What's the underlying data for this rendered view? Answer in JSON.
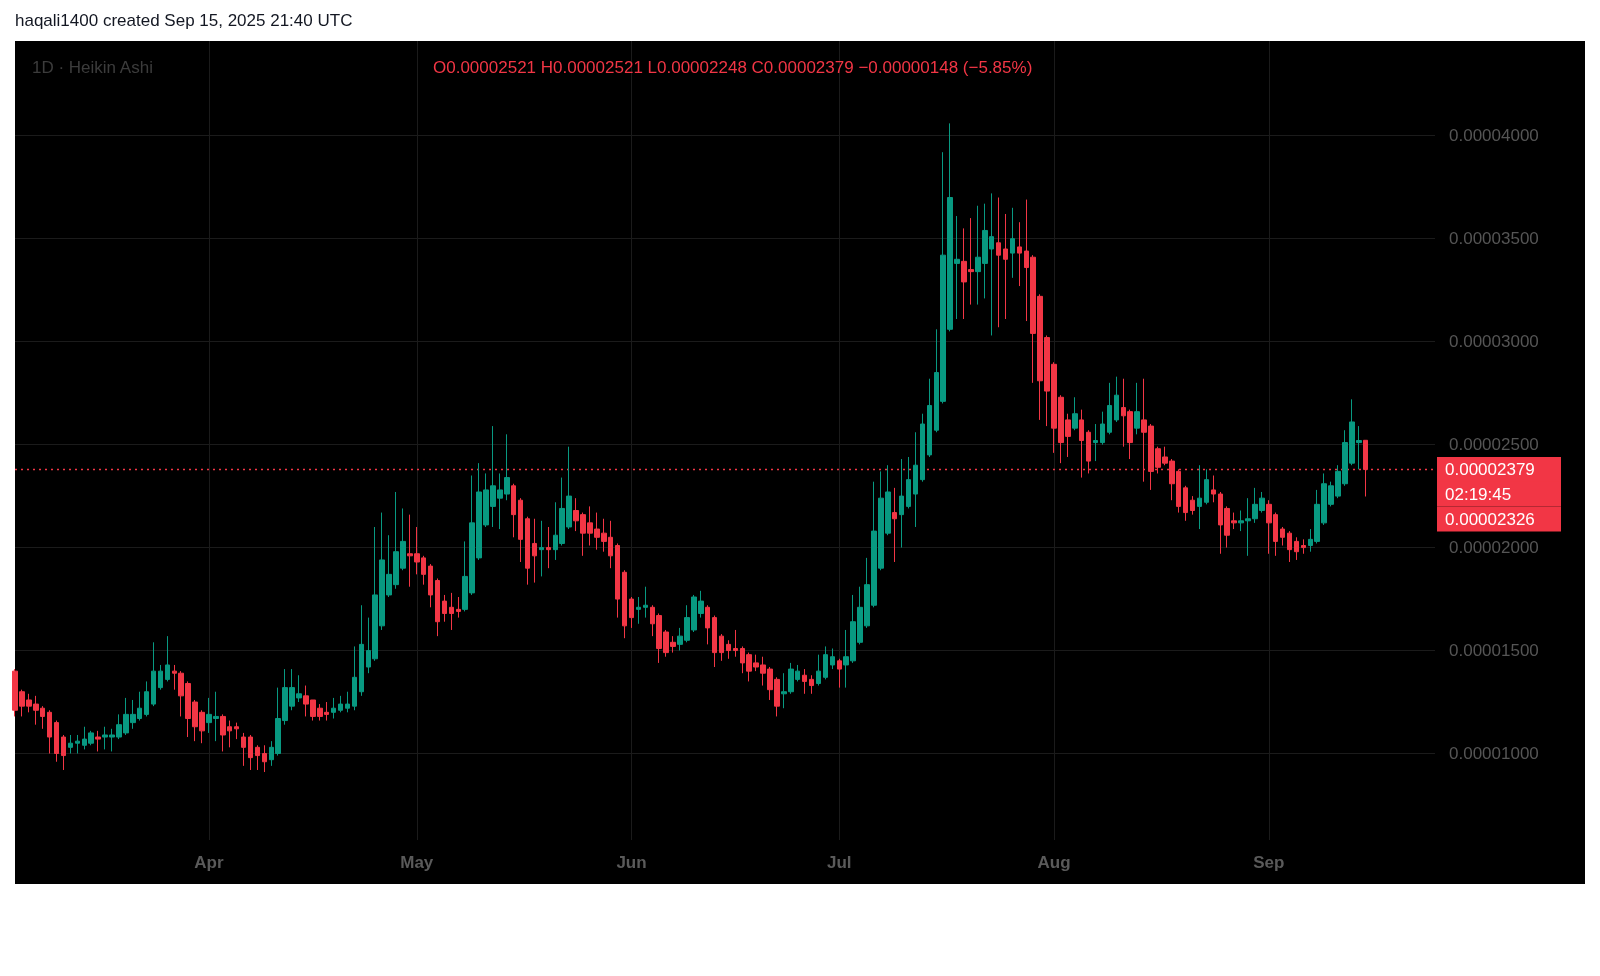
{
  "chart_data": {
    "type": "candlestick",
    "title": "1D · Heikin Ashi",
    "subtitle": "O0.00002521 H0.00002521 L0.00002248 C0.00002379 −0.00000148 (−5.85%)",
    "annotations": [
      "haqali1400 created Sep 15, 2025 21:40 UTC",
      "02:19:45",
      "0.00002326"
    ],
    "colors": [
      "#f23645",
      "#f23645",
      "#f23645",
      "#f23645",
      "#f23645",
      "#f23645",
      "#f23645",
      "#f23645",
      "#089981",
      "#089981",
      "#089981",
      "#089981",
      "#f23645",
      "#089981",
      "#089981",
      "#089981",
      "#089981",
      "#089981",
      "#089981",
      "#089981",
      "#089981",
      "#089981",
      "#089981",
      "#f23645",
      "#f23645",
      "#f23645",
      "#f23645",
      "#f23645",
      "#089981",
      "#089981",
      "#f23645",
      "#f23645",
      "#f23645",
      "#f23645",
      "#f23645",
      "#f23645",
      "#f23645",
      "#089981",
      "#089981",
      "#089981",
      "#089981",
      "#089981",
      "#f23645",
      "#f23645",
      "#f23645",
      "#f23645",
      "#089981",
      "#089981",
      "#089981",
      "#089981",
      "#089981",
      "#089981",
      "#089981",
      "#089981",
      "#089981",
      "#089981",
      "#089981",
      "#f23645",
      "#f23645",
      "#f23645",
      "#f23645",
      "#f23645",
      "#f23645",
      "#f23645",
      "#f23645",
      "#089981",
      "#089981",
      "#089981",
      "#089981",
      "#089981",
      "#089981",
      "#089981",
      "#f23645",
      "#f23645",
      "#f23645",
      "#f23645",
      "#089981",
      "#f23645",
      "#089981",
      "#089981",
      "#089981",
      "#f23645",
      "#f23645",
      "#f23645",
      "#f23645",
      "#f23645",
      "#f23645",
      "#f23645",
      "#f23645",
      "#f23645",
      "#089981",
      "#089981",
      "#f23645",
      "#f23645",
      "#f23645",
      "#f23645",
      "#089981",
      "#089981",
      "#089981",
      "#089981",
      "#f23645",
      "#f23645",
      "#f23645",
      "#f23645",
      "#f23645",
      "#f23645",
      "#f23645",
      "#f23645",
      "#f23645",
      "#f23645",
      "#f23645",
      "#089981",
      "#089981",
      "#089981",
      "#f23645",
      "#f23645",
      "#089981",
      "#089981",
      "#089981",
      "#f23645",
      "#089981",
      "#089981",
      "#089981",
      "#089981",
      "#089981",
      "#089981",
      "#089981",
      "#f23645",
      "#089981",
      "#089981",
      "#089981",
      "#089981",
      "#089981",
      "#089981",
      "#089981",
      "#089981",
      "#089981",
      "#f23645",
      "#f23645",
      "#089981",
      "#089981",
      "#089981",
      "#f23645",
      "#f23645",
      "#089981",
      "#f23645",
      "#f23645",
      "#f23645",
      "#f23645",
      "#f23645",
      "#f23645",
      "#f23645",
      "#f23645",
      "#089981",
      "#f23645",
      "#f23645",
      "#089981",
      "#089981",
      "#089981",
      "#089981",
      "#f23645",
      "#f23645",
      "#089981",
      "#f23645",
      "#f23645",
      "#f23645",
      "#f23645",
      "#f23645",
      "#f23645",
      "#f23645",
      "#f23645",
      "#089981",
      "#089981",
      "#f23645",
      "#f23645",
      "#f23645",
      "#f23645",
      "#089981",
      "#089981",
      "#089981",
      "#089981",
      "#f23645",
      "#f23645",
      "#f23645",
      "#f23645",
      "#f23645",
      "#f23645",
      "#089981",
      "#089981",
      "#089981",
      "#089981",
      "#089981",
      "#089981",
      "#089981",
      "#089981",
      "#f23645"
    ],
    "grid": true,
    "xlim": [
      "2025-03-04",
      "2025-09-25"
    ],
    "xticks": [
      {
        "value": "2025-04-01",
        "label": "Apr"
      },
      {
        "value": "2025-05-01",
        "label": "May"
      },
      {
        "value": "2025-06-01",
        "label": "Jun"
      },
      {
        "value": "2025-07-01",
        "label": "Jul"
      },
      {
        "value": "2025-08-01",
        "label": "Aug"
      },
      {
        "value": "2025-09-01",
        "label": "Sep"
      }
    ],
    "ylim": [
      5.8e-06,
      4.46e-05
    ],
    "yticks": [
      {
        "value": 1e-05,
        "label": "0.00001000"
      },
      {
        "value": 1.5e-05,
        "label": "0.00001500"
      },
      {
        "value": 2e-05,
        "label": "0.00002000"
      },
      {
        "value": 2.5e-05,
        "label": "0.00002500"
      },
      {
        "value": 3e-05,
        "label": "0.00003000"
      },
      {
        "value": 3.5e-05,
        "label": "0.00003500"
      },
      {
        "value": 4e-05,
        "label": "0.00004000"
      }
    ],
    "ref_lines": [
      {
        "axis": "y",
        "value": 2.379e-05,
        "label": "0.00002379",
        "color": "#f23645",
        "line_style": "dotted"
      }
    ],
    "x": [
      "2025-03-04",
      "2025-03-05",
      "2025-03-06",
      "2025-03-07",
      "2025-03-08",
      "2025-03-09",
      "2025-03-10",
      "2025-03-11",
      "2025-03-12",
      "2025-03-13",
      "2025-03-14",
      "2025-03-15",
      "2025-03-16",
      "2025-03-17",
      "2025-03-18",
      "2025-03-19",
      "2025-03-20",
      "2025-03-21",
      "2025-03-22",
      "2025-03-23",
      "2025-03-24",
      "2025-03-25",
      "2025-03-26",
      "2025-03-27",
      "2025-03-28",
      "2025-03-29",
      "2025-03-30",
      "2025-03-31",
      "2025-04-01",
      "2025-04-02",
      "2025-04-03",
      "2025-04-04",
      "2025-04-05",
      "2025-04-06",
      "2025-04-07",
      "2025-04-08",
      "2025-04-09",
      "2025-04-10",
      "2025-04-11",
      "2025-04-12",
      "2025-04-13",
      "2025-04-14",
      "2025-04-15",
      "2025-04-16",
      "2025-04-17",
      "2025-04-18",
      "2025-04-19",
      "2025-04-20",
      "2025-04-21",
      "2025-04-22",
      "2025-04-23",
      "2025-04-24",
      "2025-04-25",
      "2025-04-26",
      "2025-04-27",
      "2025-04-28",
      "2025-04-29",
      "2025-04-30",
      "2025-05-01",
      "2025-05-02",
      "2025-05-03",
      "2025-05-04",
      "2025-05-05",
      "2025-05-06",
      "2025-05-07",
      "2025-05-08",
      "2025-05-09",
      "2025-05-10",
      "2025-05-11",
      "2025-05-12",
      "2025-05-13",
      "2025-05-14",
      "2025-05-15",
      "2025-05-16",
      "2025-05-17",
      "2025-05-18",
      "2025-05-19",
      "2025-05-20",
      "2025-05-21",
      "2025-05-22",
      "2025-05-23",
      "2025-05-24",
      "2025-05-25",
      "2025-05-26",
      "2025-05-27",
      "2025-05-28",
      "2025-05-29",
      "2025-05-30",
      "2025-05-31",
      "2025-06-01",
      "2025-06-02",
      "2025-06-03",
      "2025-06-04",
      "2025-06-05",
      "2025-06-06",
      "2025-06-07",
      "2025-06-08",
      "2025-06-09",
      "2025-06-10",
      "2025-06-11",
      "2025-06-12",
      "2025-06-13",
      "2025-06-14",
      "2025-06-15",
      "2025-06-16",
      "2025-06-17",
      "2025-06-18",
      "2025-06-19",
      "2025-06-20",
      "2025-06-21",
      "2025-06-22",
      "2025-06-23",
      "2025-06-24",
      "2025-06-25",
      "2025-06-26",
      "2025-06-27",
      "2025-06-28",
      "2025-06-29",
      "2025-06-30",
      "2025-07-01",
      "2025-07-02",
      "2025-07-03",
      "2025-07-04",
      "2025-07-05",
      "2025-07-06",
      "2025-07-07",
      "2025-07-08",
      "2025-07-09",
      "2025-07-10",
      "2025-07-11",
      "2025-07-12",
      "2025-07-13",
      "2025-07-14",
      "2025-07-15",
      "2025-07-16",
      "2025-07-17",
      "2025-07-18",
      "2025-07-19",
      "2025-07-20",
      "2025-07-21",
      "2025-07-22",
      "2025-07-23",
      "2025-07-24",
      "2025-07-25",
      "2025-07-26",
      "2025-07-27",
      "2025-07-28",
      "2025-07-29",
      "2025-07-30",
      "2025-07-31",
      "2025-08-01",
      "2025-08-02",
      "2025-08-03",
      "2025-08-04",
      "2025-08-05",
      "2025-08-06",
      "2025-08-07",
      "2025-08-08",
      "2025-08-09",
      "2025-08-10",
      "2025-08-11",
      "2025-08-12",
      "2025-08-13",
      "2025-08-14",
      "2025-08-15",
      "2025-08-16",
      "2025-08-17",
      "2025-08-18",
      "2025-08-19",
      "2025-08-20",
      "2025-08-21",
      "2025-08-22",
      "2025-08-23",
      "2025-08-24",
      "2025-08-25",
      "2025-08-26",
      "2025-08-27",
      "2025-08-28",
      "2025-08-29",
      "2025-08-30",
      "2025-08-31",
      "2025-09-01",
      "2025-09-02",
      "2025-09-03",
      "2025-09-04",
      "2025-09-05",
      "2025-09-06",
      "2025-09-07",
      "2025-09-08",
      "2025-09-09",
      "2025-09-10",
      "2025-09-11",
      "2025-09-12",
      "2025-09-13",
      "2025-09-14",
      "2025-09-15"
    ],
    "ohlc": [
      [
        1.4e-05,
        1.41e-05,
        1.18e-05,
        1.21e-05
      ],
      [
        1.3e-05,
        1.31e-05,
        1.18e-05,
        1.23e-05
      ],
      [
        1.26e-05,
        1.29e-05,
        1.2e-05,
        1.23e-05
      ],
      [
        1.24e-05,
        1.28e-05,
        1.14e-05,
        1.21e-05
      ],
      [
        1.22e-05,
        1.23e-05,
        1.12e-05,
        1.18e-05
      ],
      [
        1.2e-05,
        1.21e-05,
        1e-05,
        1.08e-05
      ],
      [
        1.15e-05,
        1.16e-05,
        9.6e-06,
        1e-05
      ],
      [
        1.08e-05,
        1.09e-05,
        9.2e-06,
        9.9e-06
      ],
      [
        1.03e-05,
        1.09e-05,
        1e-05,
        1.05e-05
      ],
      [
        1.05e-05,
        1.09e-05,
        1e-05,
        1.06e-05
      ],
      [
        1.04e-05,
        1.13e-05,
        1.02e-05,
        1.07e-05
      ],
      [
        1.05e-05,
        1.11e-05,
        1.04e-05,
        1.1e-05
      ],
      [
        1.08e-05,
        1.11e-05,
        1.01e-05,
        1.07e-05
      ],
      [
        1.08e-05,
        1.13e-05,
        1.02e-05,
        1.09e-05
      ],
      [
        1.08e-05,
        1.12e-05,
        1.01e-05,
        1.09e-05
      ],
      [
        1.08e-05,
        1.19e-05,
        1.07e-05,
        1.14e-05
      ],
      [
        1.1e-05,
        1.27e-05,
        1.09e-05,
        1.19e-05
      ],
      [
        1.15e-05,
        1.26e-05,
        1.12e-05,
        1.19e-05
      ],
      [
        1.17e-05,
        1.3e-05,
        1.16e-05,
        1.22e-05
      ],
      [
        1.19e-05,
        1.35e-05,
        1.18e-05,
        1.3e-05
      ],
      [
        1.24e-05,
        1.54e-05,
        1.23e-05,
        1.4e-05
      ],
      [
        1.32e-05,
        1.43e-05,
        1.31e-05,
        1.4e-05
      ],
      [
        1.36e-05,
        1.57e-05,
        1.35e-05,
        1.43e-05
      ],
      [
        1.4e-05,
        1.43e-05,
        1.31e-05,
        1.39e-05
      ],
      [
        1.39e-05,
        1.4e-05,
        1.18e-05,
        1.28e-05
      ],
      [
        1.34e-05,
        1.35e-05,
        1.08e-05,
        1.17e-05
      ],
      [
        1.25e-05,
        1.26e-05,
        1.06e-05,
        1.13e-05
      ],
      [
        1.2e-05,
        1.21e-05,
        1.05e-05,
        1.11e-05
      ],
      [
        1.15e-05,
        1.27e-05,
        1.1e-05,
        1.19e-05
      ],
      [
        1.17e-05,
        1.3e-05,
        1.06e-05,
        1.18e-05
      ],
      [
        1.18e-05,
        1.19e-05,
        1.01e-05,
        1.09e-05
      ],
      [
        1.13e-05,
        1.16e-05,
        1.03e-05,
        1.11e-05
      ],
      [
        1.13e-05,
        1.15e-05,
        1.07e-05,
        1.12e-05
      ],
      [
        1.08e-05,
        1.1e-05,
        9.4e-06,
        1.03e-05
      ],
      [
        1.08e-05,
        1.09e-05,
        9.2e-06,
        9.8e-06
      ],
      [
        1.03e-05,
        1.04e-05,
        9.2e-06,
        9.9e-06
      ],
      [
        1e-05,
        1.04e-05,
        9.1e-06,
        9.6e-06
      ],
      [
        9.7e-06,
        1.06e-05,
        9.4e-06,
        1.03e-05
      ],
      [
        1e-05,
        1.32e-05,
        9.9e-06,
        1.17e-05
      ],
      [
        1.16e-05,
        1.41e-05,
        1.14e-05,
        1.32e-05
      ],
      [
        1.23e-05,
        1.41e-05,
        1.21e-05,
        1.32e-05
      ],
      [
        1.27e-05,
        1.38e-05,
        1.25e-05,
        1.29e-05
      ],
      [
        1.28e-05,
        1.33e-05,
        1.18e-05,
        1.24e-05
      ],
      [
        1.26e-05,
        1.26e-05,
        1.16e-05,
        1.18e-05
      ],
      [
        1.22e-05,
        1.24e-05,
        1.16e-05,
        1.18e-05
      ],
      [
        1.2e-05,
        1.25e-05,
        1.16e-05,
        1.19e-05
      ],
      [
        1.2e-05,
        1.27e-05,
        1.17e-05,
        1.22e-05
      ],
      [
        1.21e-05,
        1.28e-05,
        1.2e-05,
        1.24e-05
      ],
      [
        1.22e-05,
        1.3e-05,
        1.2e-05,
        1.24e-05
      ],
      [
        1.23e-05,
        1.52e-05,
        1.21e-05,
        1.37e-05
      ],
      [
        1.3e-05,
        1.72e-05,
        1.28e-05,
        1.53e-05
      ],
      [
        1.42e-05,
        1.66e-05,
        1.39e-05,
        1.5e-05
      ],
      [
        1.46e-05,
        2.1e-05,
        1.45e-05,
        1.77e-05
      ],
      [
        1.62e-05,
        2.17e-05,
        1.6e-05,
        1.94e-05
      ],
      [
        1.77e-05,
        2.06e-05,
        1.76e-05,
        1.87e-05
      ],
      [
        1.82e-05,
        2.27e-05,
        1.8e-05,
        1.98e-05
      ],
      [
        1.9e-05,
        2.19e-05,
        1.89e-05,
        2.03e-05
      ],
      [
        1.97e-05,
        2.16e-05,
        1.81e-05,
        1.96e-05
      ],
      [
        1.97e-05,
        2.1e-05,
        1.87e-05,
        1.93e-05
      ],
      [
        1.95e-05,
        1.96e-05,
        1.82e-05,
        1.87e-05
      ],
      [
        1.91e-05,
        1.92e-05,
        1.71e-05,
        1.77e-05
      ],
      [
        1.84e-05,
        1.85e-05,
        1.57e-05,
        1.64e-05
      ],
      [
        1.74e-05,
        1.77e-05,
        1.64e-05,
        1.68e-05
      ],
      [
        1.71e-05,
        1.78e-05,
        1.6e-05,
        1.68e-05
      ],
      [
        1.7e-05,
        1.76e-05,
        1.66e-05,
        1.69e-05
      ],
      [
        1.7e-05,
        2.03e-05,
        1.69e-05,
        1.86e-05
      ],
      [
        1.78e-05,
        2.35e-05,
        1.77e-05,
        2.12e-05
      ],
      [
        1.95e-05,
        2.41e-05,
        1.94e-05,
        2.27e-05
      ],
      [
        2.11e-05,
        2.36e-05,
        2.1e-05,
        2.28e-05
      ],
      [
        2.2e-05,
        2.59e-05,
        2.1e-05,
        2.3e-05
      ],
      [
        2.24e-05,
        2.36e-05,
        2.09e-05,
        2.28e-05
      ],
      [
        2.26e-05,
        2.55e-05,
        2.23e-05,
        2.34e-05
      ],
      [
        2.3e-05,
        2.31e-05,
        2.05e-05,
        2.16e-05
      ],
      [
        2.23e-05,
        2.24e-05,
        1.93e-05,
        2.04e-05
      ],
      [
        2.14e-05,
        2.15e-05,
        1.82e-05,
        1.9e-05
      ],
      [
        2.02e-05,
        2.14e-05,
        1.83e-05,
        1.96e-05
      ],
      [
        1.99e-05,
        2.13e-05,
        1.86e-05,
        2e-05
      ],
      [
        2e-05,
        2.1e-05,
        1.9e-05,
        1.99e-05
      ],
      [
        1.99e-05,
        2.22e-05,
        1.94e-05,
        2.06e-05
      ],
      [
        2.02e-05,
        2.34e-05,
        2.01e-05,
        2.19e-05
      ],
      [
        2.1e-05,
        2.49e-05,
        2.09e-05,
        2.25e-05
      ],
      [
        2.18e-05,
        2.24e-05,
        2.08e-05,
        2.13e-05
      ],
      [
        2.16e-05,
        2.17e-05,
        1.96e-05,
        2.07e-05
      ],
      [
        2.12e-05,
        2.2e-05,
        2.01e-05,
        2.07e-05
      ],
      [
        2.09e-05,
        2.17e-05,
        1.99e-05,
        2.05e-05
      ],
      [
        2.07e-05,
        2.14e-05,
        1.98e-05,
        2.03e-05
      ],
      [
        2.05e-05,
        2.13e-05,
        1.9e-05,
        1.96e-05
      ],
      [
        2.01e-05,
        2.02e-05,
        1.66e-05,
        1.75e-05
      ],
      [
        1.88e-05,
        1.89e-05,
        1.56e-05,
        1.62e-05
      ],
      [
        1.75e-05,
        1.76e-05,
        1.61e-05,
        1.66e-05
      ],
      [
        1.7e-05,
        1.76e-05,
        1.63e-05,
        1.71e-05
      ],
      [
        1.71e-05,
        1.81e-05,
        1.66e-05,
        1.72e-05
      ],
      [
        1.71e-05,
        1.72e-05,
        1.57e-05,
        1.63e-05
      ],
      [
        1.67e-05,
        1.68e-05,
        1.44e-05,
        1.51e-05
      ],
      [
        1.59e-05,
        1.6e-05,
        1.47e-05,
        1.49e-05
      ],
      [
        1.54e-05,
        1.57e-05,
        1.49e-05,
        1.52e-05
      ],
      [
        1.53e-05,
        1.61e-05,
        1.5e-05,
        1.57e-05
      ],
      [
        1.55e-05,
        1.72e-05,
        1.54e-05,
        1.66e-05
      ],
      [
        1.6e-05,
        1.77e-05,
        1.59e-05,
        1.76e-05
      ],
      [
        1.68e-05,
        1.79e-05,
        1.66e-05,
        1.74e-05
      ],
      [
        1.71e-05,
        1.72e-05,
        1.53e-05,
        1.61e-05
      ],
      [
        1.66e-05,
        1.67e-05,
        1.42e-05,
        1.49e-05
      ],
      [
        1.57e-05,
        1.58e-05,
        1.45e-05,
        1.49e-05
      ],
      [
        1.53e-05,
        1.55e-05,
        1.46e-05,
        1.5e-05
      ],
      [
        1.51e-05,
        1.6e-05,
        1.47e-05,
        1.5e-05
      ],
      [
        1.51e-05,
        1.52e-05,
        1.39e-05,
        1.44e-05
      ],
      [
        1.48e-05,
        1.49e-05,
        1.35e-05,
        1.4e-05
      ],
      [
        1.44e-05,
        1.48e-05,
        1.4e-05,
        1.42e-05
      ],
      [
        1.43e-05,
        1.47e-05,
        1.33e-05,
        1.39e-05
      ],
      [
        1.41e-05,
        1.42e-05,
        1.26e-05,
        1.31e-05
      ],
      [
        1.36e-05,
        1.37e-05,
        1.18e-05,
        1.23e-05
      ],
      [
        1.29e-05,
        1.39e-05,
        1.22e-05,
        1.3e-05
      ],
      [
        1.3e-05,
        1.44e-05,
        1.29e-05,
        1.41e-05
      ],
      [
        1.36e-05,
        1.43e-05,
        1.35e-05,
        1.4e-05
      ],
      [
        1.38e-05,
        1.41e-05,
        1.29e-05,
        1.35e-05
      ],
      [
        1.36e-05,
        1.38e-05,
        1.29e-05,
        1.33e-05
      ],
      [
        1.34e-05,
        1.48e-05,
        1.33e-05,
        1.4e-05
      ],
      [
        1.37e-05,
        1.52e-05,
        1.36e-05,
        1.48e-05
      ],
      [
        1.43e-05,
        1.51e-05,
        1.41e-05,
        1.47e-05
      ],
      [
        1.45e-05,
        1.46e-05,
        1.32e-05,
        1.41e-05
      ],
      [
        1.43e-05,
        1.6e-05,
        1.32e-05,
        1.47e-05
      ],
      [
        1.45e-05,
        1.77e-05,
        1.44e-05,
        1.64e-05
      ],
      [
        1.54e-05,
        1.81e-05,
        1.53e-05,
        1.71e-05
      ],
      [
        1.62e-05,
        1.95e-05,
        1.61e-05,
        1.82e-05
      ],
      [
        1.72e-05,
        2.32e-05,
        1.71e-05,
        2.08e-05
      ],
      [
        1.9e-05,
        2.37e-05,
        1.89e-05,
        2.24e-05
      ],
      [
        2.07e-05,
        2.4e-05,
        2.06e-05,
        2.27e-05
      ],
      [
        2.17e-05,
        2.29e-05,
        1.93e-05,
        2.14e-05
      ],
      [
        2.16e-05,
        2.43e-05,
        2e-05,
        2.25e-05
      ],
      [
        2.2e-05,
        2.44e-05,
        2.19e-05,
        2.33e-05
      ],
      [
        2.26e-05,
        2.56e-05,
        2.1e-05,
        2.4e-05
      ],
      [
        2.33e-05,
        2.65e-05,
        2.32e-05,
        2.6e-05
      ],
      [
        2.45e-05,
        2.82e-05,
        2.44e-05,
        2.69e-05
      ],
      [
        2.57e-05,
        3.06e-05,
        2.56e-05,
        2.85e-05
      ],
      [
        2.71e-05,
        3.92e-05,
        2.7e-05,
        3.42e-05
      ],
      [
        3.06e-05,
        4.06e-05,
        3.05e-05,
        3.7e-05
      ],
      [
        3.38e-05,
        3.61e-05,
        3.11e-05,
        3.4e-05
      ],
      [
        3.39e-05,
        3.55e-05,
        3.11e-05,
        3.29e-05
      ],
      [
        3.35e-05,
        3.6e-05,
        3.18e-05,
        3.34e-05
      ],
      [
        3.34e-05,
        3.66e-05,
        3.18e-05,
        3.41e-05
      ],
      [
        3.38e-05,
        3.67e-05,
        3.21e-05,
        3.54e-05
      ],
      [
        3.45e-05,
        3.72e-05,
        3.03e-05,
        3.51e-05
      ],
      [
        3.48e-05,
        3.7e-05,
        3.07e-05,
        3.42e-05
      ],
      [
        3.45e-05,
        3.62e-05,
        3.11e-05,
        3.4e-05
      ],
      [
        3.43e-05,
        3.65e-05,
        3.31e-05,
        3.5e-05
      ],
      [
        3.46e-05,
        3.58e-05,
        3.27e-05,
        3.43e-05
      ],
      [
        3.44e-05,
        3.69e-05,
        3.1e-05,
        3.36e-05
      ],
      [
        3.41e-05,
        3.42e-05,
        2.8e-05,
        3.04e-05
      ],
      [
        3.22e-05,
        3.23e-05,
        2.62e-05,
        2.81e-05
      ],
      [
        3.02e-05,
        3.03e-05,
        2.59e-05,
        2.76e-05
      ],
      [
        2.89e-05,
        2.9e-05,
        2.46e-05,
        2.58e-05
      ],
      [
        2.73e-05,
        2.74e-05,
        2.41e-05,
        2.51e-05
      ],
      [
        2.62e-05,
        2.65e-05,
        2.44e-05,
        2.54e-05
      ],
      [
        2.58e-05,
        2.73e-05,
        2.57e-05,
        2.65e-05
      ],
      [
        2.62e-05,
        2.67e-05,
        2.34e-05,
        2.52e-05
      ],
      [
        2.56e-05,
        2.57e-05,
        2.36e-05,
        2.42e-05
      ],
      [
        2.51e-05,
        2.6e-05,
        2.42e-05,
        2.52e-05
      ],
      [
        2.51e-05,
        2.66e-05,
        2.5e-05,
        2.6e-05
      ],
      [
        2.56e-05,
        2.8e-05,
        2.55e-05,
        2.69e-05
      ],
      [
        2.62e-05,
        2.83e-05,
        2.61e-05,
        2.74e-05
      ],
      [
        2.68e-05,
        2.82e-05,
        2.49e-05,
        2.64e-05
      ],
      [
        2.66e-05,
        2.67e-05,
        2.43e-05,
        2.51e-05
      ],
      [
        2.58e-05,
        2.8e-05,
        2.55e-05,
        2.66e-05
      ],
      [
        2.62e-05,
        2.82e-05,
        2.32e-05,
        2.56e-05
      ],
      [
        2.59e-05,
        2.6e-05,
        2.28e-05,
        2.37e-05
      ],
      [
        2.48e-05,
        2.49e-05,
        2.36e-05,
        2.39e-05
      ],
      [
        2.44e-05,
        2.49e-05,
        2.4e-05,
        2.41e-05
      ],
      [
        2.42e-05,
        2.43e-05,
        2.23e-05,
        2.31e-05
      ],
      [
        2.37e-05,
        2.38e-05,
        2.17e-05,
        2.2e-05
      ],
      [
        2.29e-05,
        2.3e-05,
        2.13e-05,
        2.17e-05
      ],
      [
        2.23e-05,
        2.25e-05,
        2.16e-05,
        2.18e-05
      ],
      [
        2.2e-05,
        2.4e-05,
        2.09e-05,
        2.24e-05
      ],
      [
        2.22e-05,
        2.38e-05,
        2.21e-05,
        2.33e-05
      ],
      [
        2.28e-05,
        2.35e-05,
        2.22e-05,
        2.26e-05
      ],
      [
        2.26e-05,
        2.27e-05,
        1.97e-05,
        2.11e-05
      ],
      [
        2.19e-05,
        2.2e-05,
        2e-05,
        2.06e-05
      ],
      [
        2.13e-05,
        2.17e-05,
        2.09e-05,
        2.12e-05
      ],
      [
        2.12e-05,
        2.18e-05,
        2.08e-05,
        2.13e-05
      ],
      [
        2.13e-05,
        2.24e-05,
        1.96e-05,
        2.14e-05
      ],
      [
        2.14e-05,
        2.29e-05,
        2.12e-05,
        2.21e-05
      ],
      [
        2.18e-05,
        2.27e-05,
        2.17e-05,
        2.24e-05
      ],
      [
        2.21e-05,
        2.23e-05,
        1.97e-05,
        2.12e-05
      ],
      [
        2.16e-05,
        2.17e-05,
        1.96e-05,
        2.03e-05
      ],
      [
        2.09e-05,
        2.1e-05,
        2.01e-05,
        2.05e-05
      ],
      [
        2.07e-05,
        2.08e-05,
        1.93e-05,
        1.99e-05
      ],
      [
        2.03e-05,
        2.05e-05,
        1.94e-05,
        1.98e-05
      ],
      [
        2.01e-05,
        2.04e-05,
        1.97e-05,
        2e-05
      ],
      [
        2.01e-05,
        2.09e-05,
        1.98e-05,
        2.04e-05
      ],
      [
        2.03e-05,
        2.28e-05,
        2.02e-05,
        2.21e-05
      ],
      [
        2.12e-05,
        2.36e-05,
        2.11e-05,
        2.31e-05
      ],
      [
        2.21e-05,
        2.32e-05,
        2.2e-05,
        2.3e-05
      ],
      [
        2.25e-05,
        2.4e-05,
        2.24e-05,
        2.37e-05
      ],
      [
        2.31e-05,
        2.57e-05,
        2.3e-05,
        2.51e-05
      ],
      [
        2.41e-05,
        2.72e-05,
        2.4e-05,
        2.61e-05
      ],
      [
        2.51e-05,
        2.59e-05,
        2.38e-05,
        2.52e-05
      ],
      [
        2.521e-05,
        2.521e-05,
        2.248e-05,
        2.379e-05
      ]
    ]
  }
}
